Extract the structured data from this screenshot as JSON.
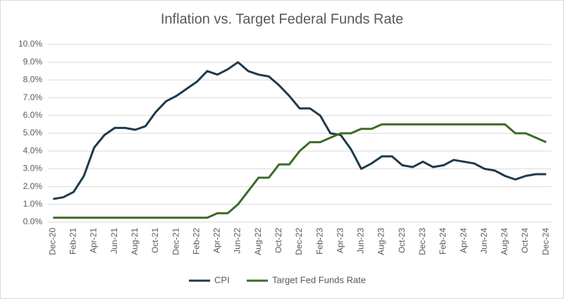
{
  "chart_data": {
    "type": "line",
    "title": "Inflation vs. Target Federal Funds Rate",
    "categories": [
      "Dec-20",
      null,
      "Feb-21",
      null,
      "Apr-21",
      null,
      "Jun-21",
      null,
      "Aug-21",
      null,
      "Oct-21",
      null,
      "Dec-21",
      null,
      "Feb-22",
      null,
      "Apr-22",
      null,
      "Jun-22",
      null,
      "Aug-22",
      null,
      "Oct-22",
      null,
      "Dec-22",
      null,
      "Feb-23",
      null,
      "Apr-23",
      null,
      "Jun-23",
      null,
      "Aug-23",
      null,
      "Oct-23",
      null,
      "Dec-23",
      null,
      "Feb-24",
      null,
      "Apr-24",
      null,
      "Jun-24",
      null,
      "Aug-24",
      null,
      "Oct-24",
      null,
      "Dec-24"
    ],
    "series": [
      {
        "name": "CPI",
        "color": "#1e3a4c",
        "values": [
          1.3,
          1.4,
          1.7,
          2.6,
          4.2,
          4.9,
          5.3,
          5.3,
          5.2,
          5.4,
          6.2,
          6.8,
          7.1,
          7.5,
          7.9,
          8.5,
          8.3,
          8.6,
          9.0,
          8.5,
          8.3,
          8.2,
          7.7,
          7.1,
          6.4,
          6.4,
          6.0,
          5.0,
          4.9,
          4.1,
          3.0,
          3.3,
          3.7,
          3.7,
          3.2,
          3.1,
          3.4,
          3.1,
          3.2,
          3.5,
          3.4,
          3.3,
          3.0,
          2.9,
          2.6,
          2.4,
          2.6,
          2.7,
          2.7
        ]
      },
      {
        "name": "Target Fed Funds Rate",
        "color": "#3d6b27",
        "values": [
          0.25,
          0.25,
          0.25,
          0.25,
          0.25,
          0.25,
          0.25,
          0.25,
          0.25,
          0.25,
          0.25,
          0.25,
          0.25,
          0.25,
          0.25,
          0.25,
          0.5,
          0.5,
          1.0,
          1.75,
          2.5,
          2.5,
          3.25,
          3.25,
          4.0,
          4.5,
          4.5,
          4.75,
          5.0,
          5.0,
          5.25,
          5.25,
          5.5,
          5.5,
          5.5,
          5.5,
          5.5,
          5.5,
          5.5,
          5.5,
          5.5,
          5.5,
          5.5,
          5.5,
          5.5,
          5.0,
          5.0,
          4.75,
          4.5
        ]
      }
    ],
    "ylim": [
      0,
      10
    ],
    "yticks": [
      {
        "value": 0,
        "label": "0.0%"
      },
      {
        "value": 1,
        "label": "1.0%"
      },
      {
        "value": 2,
        "label": "2.0%"
      },
      {
        "value": 3,
        "label": "3.0%"
      },
      {
        "value": 4,
        "label": "4.0%"
      },
      {
        "value": 5,
        "label": "5.0%"
      },
      {
        "value": 6,
        "label": "6.0%"
      },
      {
        "value": 7,
        "label": "7.0%"
      },
      {
        "value": 8,
        "label": "8.0%"
      },
      {
        "value": 9,
        "label": "9.0%"
      },
      {
        "value": 10,
        "label": "10.0%"
      }
    ],
    "grid": true,
    "legend": "bottom"
  }
}
